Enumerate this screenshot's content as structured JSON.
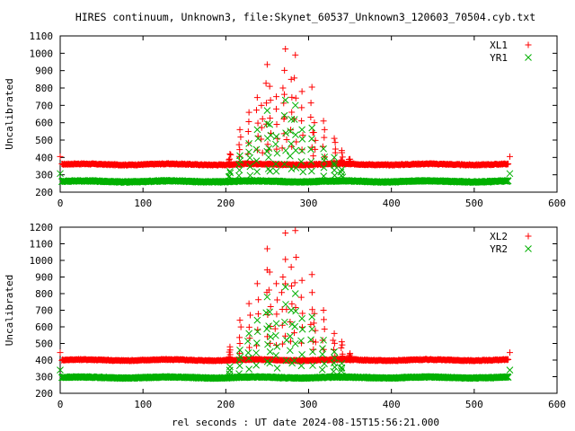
{
  "title": "HIRES continuum, Unknown3, file:Skynet_60537_Unknown3_120603_70504.cyb.txt",
  "xlabel": "rel seconds : UT date 2024-08-15T15:56:21.000",
  "colors": {
    "red": "#ff0000",
    "green": "#00b000",
    "axis": "#000000"
  },
  "chart_data": [
    {
      "type": "scatter",
      "ylabel": "Uncalibrated",
      "xlim": [
        0,
        600
      ],
      "ylim": [
        200,
        1100
      ],
      "x_ticks": [
        0,
        100,
        200,
        300,
        400,
        500,
        600
      ],
      "y_ticks": [
        200,
        300,
        400,
        500,
        600,
        700,
        800,
        900,
        1000,
        1100
      ],
      "legend_position": "top-right",
      "series": [
        {
          "name": "XL1",
          "marker": "plus",
          "color": "#ff0000",
          "baseline": 360,
          "x_start": 0,
          "x_end": 543,
          "spikes": [
            {
              "x": 205,
              "y": 420
            },
            {
              "x": 217,
              "y": 560
            },
            {
              "x": 228,
              "y": 660
            },
            {
              "x": 238,
              "y": 745
            },
            {
              "x": 243,
              "y": 700
            },
            {
              "x": 250,
              "y": 935
            },
            {
              "x": 253,
              "y": 810
            },
            {
              "x": 261,
              "y": 750
            },
            {
              "x": 269,
              "y": 800
            },
            {
              "x": 272,
              "y": 1025
            },
            {
              "x": 279,
              "y": 850
            },
            {
              "x": 284,
              "y": 990
            },
            {
              "x": 292,
              "y": 780
            },
            {
              "x": 304,
              "y": 805
            },
            {
              "x": 307,
              "y": 600
            },
            {
              "x": 318,
              "y": 610
            },
            {
              "x": 331,
              "y": 510
            },
            {
              "x": 340,
              "y": 440
            },
            {
              "x": 350,
              "y": 390
            }
          ]
        },
        {
          "name": "YR1",
          "marker": "cross",
          "color": "#00b000",
          "baseline": 262,
          "x_start": 0,
          "x_end": 543,
          "spikes": [
            {
              "x": 205,
              "y": 320
            },
            {
              "x": 217,
              "y": 410
            },
            {
              "x": 228,
              "y": 480
            },
            {
              "x": 238,
              "y": 560
            },
            {
              "x": 250,
              "y": 670
            },
            {
              "x": 253,
              "y": 590
            },
            {
              "x": 261,
              "y": 520
            },
            {
              "x": 272,
              "y": 730
            },
            {
              "x": 279,
              "y": 620
            },
            {
              "x": 284,
              "y": 700
            },
            {
              "x": 292,
              "y": 560
            },
            {
              "x": 304,
              "y": 570
            },
            {
              "x": 318,
              "y": 450
            },
            {
              "x": 331,
              "y": 400
            },
            {
              "x": 340,
              "y": 330
            }
          ]
        }
      ]
    },
    {
      "type": "scatter",
      "ylabel": "Uncalibrated",
      "xlim": [
        0,
        600
      ],
      "ylim": [
        200,
        1200
      ],
      "x_ticks": [
        0,
        100,
        200,
        300,
        400,
        500,
        600
      ],
      "y_ticks": [
        200,
        300,
        400,
        500,
        600,
        700,
        800,
        900,
        1000,
        1100,
        1200
      ],
      "legend_position": "top-right",
      "series": [
        {
          "name": "XL2",
          "marker": "plus",
          "color": "#ff0000",
          "baseline": 400,
          "x_start": 0,
          "x_end": 543,
          "spikes": [
            {
              "x": 205,
              "y": 480
            },
            {
              "x": 217,
              "y": 640
            },
            {
              "x": 228,
              "y": 740
            },
            {
              "x": 238,
              "y": 860
            },
            {
              "x": 250,
              "y": 1070
            },
            {
              "x": 253,
              "y": 930
            },
            {
              "x": 261,
              "y": 860
            },
            {
              "x": 269,
              "y": 900
            },
            {
              "x": 272,
              "y": 1165
            },
            {
              "x": 279,
              "y": 960
            },
            {
              "x": 284,
              "y": 1180
            },
            {
              "x": 292,
              "y": 880
            },
            {
              "x": 304,
              "y": 915
            },
            {
              "x": 307,
              "y": 680
            },
            {
              "x": 318,
              "y": 700
            },
            {
              "x": 331,
              "y": 560
            },
            {
              "x": 340,
              "y": 510
            },
            {
              "x": 350,
              "y": 440
            }
          ]
        },
        {
          "name": "YR2",
          "marker": "cross",
          "color": "#00b000",
          "baseline": 295,
          "x_start": 0,
          "x_end": 543,
          "spikes": [
            {
              "x": 205,
              "y": 360
            },
            {
              "x": 217,
              "y": 460
            },
            {
              "x": 228,
              "y": 560
            },
            {
              "x": 238,
              "y": 640
            },
            {
              "x": 250,
              "y": 780
            },
            {
              "x": 253,
              "y": 690
            },
            {
              "x": 261,
              "y": 620
            },
            {
              "x": 272,
              "y": 840
            },
            {
              "x": 279,
              "y": 700
            },
            {
              "x": 284,
              "y": 800
            },
            {
              "x": 292,
              "y": 650
            },
            {
              "x": 304,
              "y": 660
            },
            {
              "x": 318,
              "y": 520
            },
            {
              "x": 331,
              "y": 450
            },
            {
              "x": 340,
              "y": 380
            }
          ]
        }
      ]
    }
  ]
}
